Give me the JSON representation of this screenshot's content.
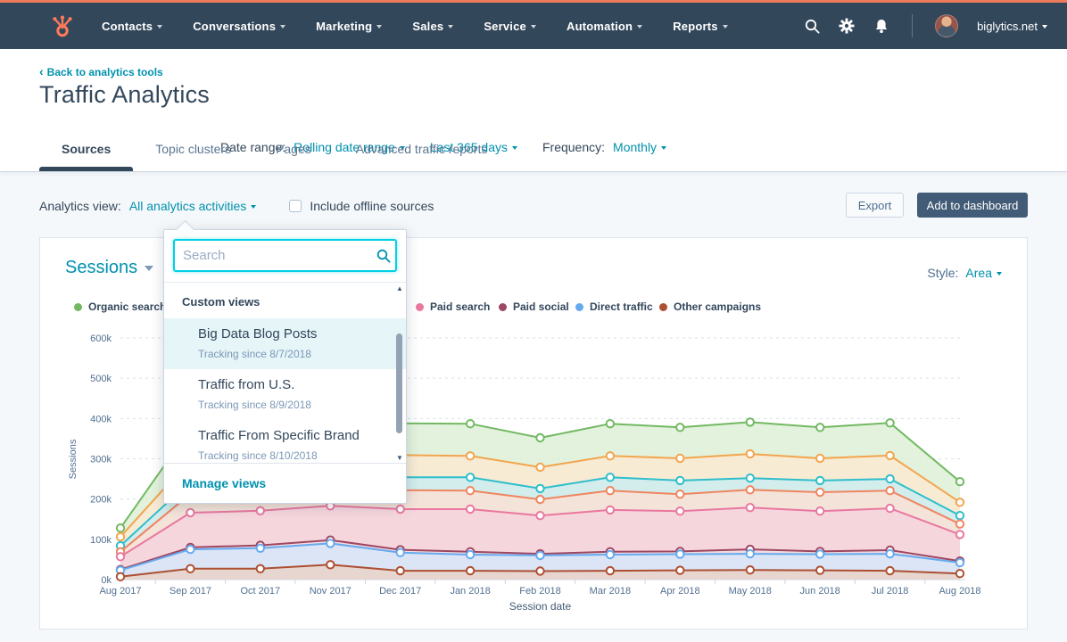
{
  "colors": {
    "top_strip": "#ec7b5c",
    "nav_bg": "#33475b",
    "logo_orange": "#ff7a59",
    "accent_teal": "#0091ae",
    "dark_button_bg": "#425b76",
    "selected_item_bg": "#e5f5f8",
    "search_focus_border": "#00d0e4"
  },
  "nav": {
    "items": [
      {
        "label": "Contacts"
      },
      {
        "label": "Conversations"
      },
      {
        "label": "Marketing"
      },
      {
        "label": "Sales"
      },
      {
        "label": "Service"
      },
      {
        "label": "Automation"
      },
      {
        "label": "Reports"
      }
    ],
    "icons": [
      "search-icon",
      "settings-gear-icon",
      "notifications-bell-icon"
    ],
    "account_name": "biglytics.net"
  },
  "header": {
    "back_link": "Back to analytics tools",
    "title": "Traffic Analytics",
    "date_range_label": "Date range:",
    "date_range_type": "Rolling date range",
    "date_range_value": "Last 365 days",
    "frequency_label": "Frequency:",
    "frequency_value": "Monthly",
    "tabs": [
      {
        "label": "Sources",
        "active": true
      },
      {
        "label": "Topic clusters",
        "active": false
      },
      {
        "label": "Pages",
        "active": false
      },
      {
        "label": "Advanced traffic reports",
        "active": false
      }
    ]
  },
  "controls": {
    "analytics_view_label": "Analytics view:",
    "analytics_view_value": "All analytics activities",
    "offline_checkbox_label": "Include offline sources",
    "offline_checkbox_checked": false,
    "export_label": "Export",
    "add_to_dashboard_label": "Add to dashboard"
  },
  "view_dropdown": {
    "search_placeholder": "Search",
    "group_label": "Custom views",
    "items": [
      {
        "title": "Big Data Blog Posts",
        "subtitle": "Tracking since 8/7/2018",
        "selected": true
      },
      {
        "title": "Traffic from U.S.",
        "subtitle": "Tracking since 8/9/2018",
        "selected": false
      },
      {
        "title": "Traffic From Specific Brand",
        "subtitle": "Tracking since 8/10/2018",
        "selected": false
      }
    ],
    "footer_link": "Manage views"
  },
  "report": {
    "metric_label": "Sessions",
    "style_label": "Style:",
    "style_value": "Area"
  },
  "chart_data": {
    "type": "area",
    "title": "Sessions",
    "xlabel": "Session date",
    "ylabel": "Sessions",
    "values_unit": "thousands of sessions",
    "ylim_k": [
      0,
      600
    ],
    "y_tick_labels": [
      "0k",
      "100k",
      "200k",
      "300k",
      "400k",
      "500k",
      "600k"
    ],
    "y_tick_values_k": [
      0,
      100,
      200,
      300,
      400,
      500,
      600
    ],
    "grid": "dashed horizontal gridlines",
    "legend_position": "top",
    "legend_note": "three legend items between Organic search and Paid search are covered by the open dropdown panel",
    "categories": [
      "Aug 2017",
      "Sep 2017",
      "Oct 2017",
      "Nov 2017",
      "Dec 2017",
      "Jan 2018",
      "Feb 2018",
      "Mar 2018",
      "Apr 2018",
      "May 2018",
      "Jun 2018",
      "Jul 2018",
      "Aug 2018"
    ],
    "legend_visible_items": [
      {
        "label": "Organic search",
        "color": "#72b963"
      },
      {
        "label": "Paid search",
        "color": "#e9779f"
      },
      {
        "label": "Paid social",
        "color": "#9d4762"
      },
      {
        "label": "Direct traffic",
        "color": "#66aaee"
      },
      {
        "label": "Other campaigns",
        "color": "#ad4f31"
      }
    ],
    "series": [
      {
        "name": "Organic search",
        "color": "#72b963",
        "fill": "#ddefd4",
        "values_k": [
          128,
          375,
          385,
          398,
          388,
          387,
          352,
          387,
          378,
          391,
          378,
          389,
          243
        ]
      },
      {
        "name": "(legend covered by dropdown - orange series)",
        "color": "#f2a54e",
        "fill": "#fce9d2",
        "values_k": [
          106,
          298,
          306,
          316,
          309,
          307,
          279,
          307,
          301,
          312,
          301,
          308,
          192
        ]
      },
      {
        "name": "(legend covered by dropdown - teal series)",
        "color": "#2fbecb",
        "fill": "#c9edf1",
        "values_k": [
          84,
          244,
          250,
          260,
          254,
          254,
          226,
          254,
          246,
          252,
          246,
          250,
          159
        ]
      },
      {
        "name": "(legend covered by dropdown - coral series)",
        "color": "#ef8560",
        "fill": "#fbe0d4",
        "values_k": [
          69,
          213,
          219,
          229,
          222,
          221,
          199,
          221,
          212,
          223,
          217,
          221,
          138
        ]
      },
      {
        "name": "Paid search",
        "color": "#e9779f",
        "fill": "#f6d3de",
        "values_k": [
          57,
          166,
          171,
          183,
          175,
          175,
          159,
          173,
          170,
          179,
          170,
          177,
          112
        ]
      },
      {
        "name": "Paid social",
        "color": "#9d4762",
        "fill": "#f2dce3",
        "values_k": [
          25,
          80,
          85,
          98,
          74,
          69,
          64,
          69,
          70,
          75,
          70,
          73,
          46
        ]
      },
      {
        "name": "Direct traffic",
        "color": "#66aaee",
        "fill": "#d5e7fa",
        "values_k": [
          23,
          75,
          78,
          90,
          67,
          62,
          60,
          62,
          63,
          64,
          63,
          64,
          42
        ]
      },
      {
        "name": "Other campaigns",
        "color": "#ad4f31",
        "fill": "#e9d2c7",
        "values_k": [
          7,
          27,
          27,
          37,
          22,
          22,
          21,
          22,
          23,
          24,
          23,
          22,
          15
        ]
      }
    ]
  }
}
